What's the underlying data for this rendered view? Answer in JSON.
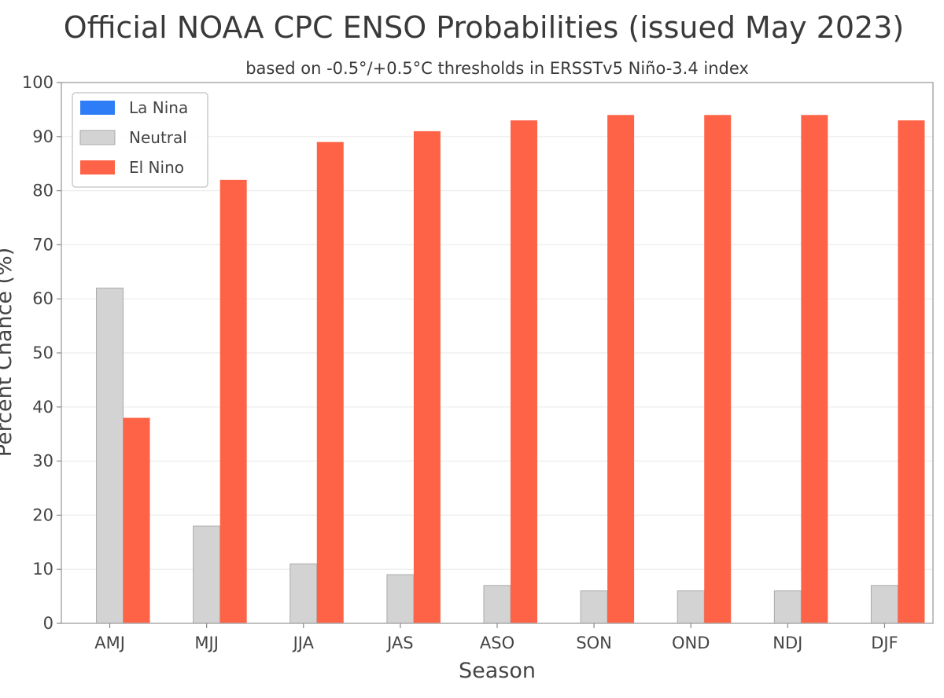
{
  "chart_data": {
    "type": "bar",
    "title": "Official NOAA CPC ENSO Probabilities (issued May 2023)",
    "subtitle": "based on -0.5°/+0.5°C thresholds in ERSSTv5 Niño-3.4 index",
    "xlabel": "Season",
    "ylabel": "Percent Chance (%)",
    "ylim": [
      0,
      100
    ],
    "yticks": [
      0,
      10,
      20,
      30,
      40,
      50,
      60,
      70,
      80,
      90,
      100
    ],
    "grid": true,
    "legend_position": "top-left",
    "categories": [
      "AMJ",
      "MJJ",
      "JJA",
      "JAS",
      "ASO",
      "SON",
      "OND",
      "NDJ",
      "DJF"
    ],
    "series": [
      {
        "name": "La Nina",
        "color": "#2f7df6",
        "values": [
          0,
          0,
          0,
          0,
          0,
          0,
          0,
          0,
          0
        ]
      },
      {
        "name": "Neutral",
        "color": "#d3d3d3",
        "values": [
          62,
          18,
          11,
          9,
          7,
          6,
          6,
          6,
          7
        ]
      },
      {
        "name": "El Nino",
        "color": "#ff6347",
        "values": [
          38,
          82,
          89,
          91,
          93,
          94,
          94,
          94,
          93
        ]
      }
    ]
  }
}
